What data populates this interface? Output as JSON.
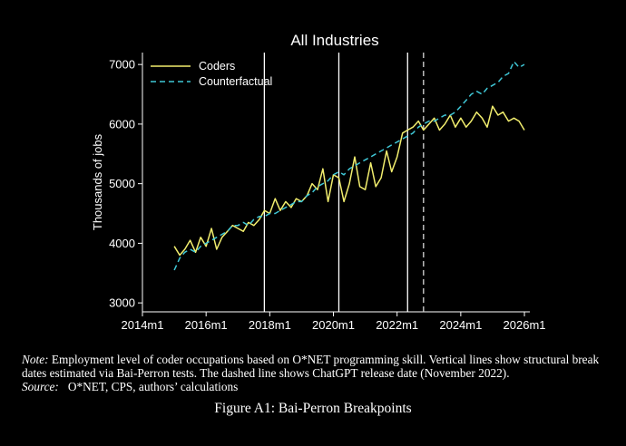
{
  "chart_data": {
    "type": "line",
    "title": "All Industries",
    "xlabel": "",
    "ylabel": "Thousands of jobs",
    "x_tick_labels": [
      "2014m1",
      "2016m1",
      "2018m1",
      "2020m1",
      "2022m1",
      "2024m1",
      "2026m1"
    ],
    "x_ticks": [
      2014.0,
      2016.0,
      2018.0,
      2020.0,
      2022.0,
      2024.0,
      2026.0
    ],
    "xlim": [
      2014.0,
      2026.17
    ],
    "y_ticks": [
      3000,
      4000,
      5000,
      6000,
      7000
    ],
    "y_tick_labels": [
      "3000",
      "4000",
      "5000",
      "6000",
      "7000"
    ],
    "ylim": [
      2850,
      7200
    ],
    "grid": false,
    "legend_position": "top-left",
    "series": [
      {
        "name": "Coders",
        "color": "#f2ee6e",
        "dash": "solid",
        "x": [
          2015.0,
          2015.17,
          2015.33,
          2015.5,
          2015.67,
          2015.83,
          2016.0,
          2016.17,
          2016.33,
          2016.5,
          2016.67,
          2016.83,
          2017.0,
          2017.17,
          2017.33,
          2017.5,
          2017.67,
          2017.83,
          2018.0,
          2018.17,
          2018.33,
          2018.5,
          2018.67,
          2018.83,
          2019.0,
          2019.17,
          2019.33,
          2019.5,
          2019.67,
          2019.83,
          2020.0,
          2020.17,
          2020.33,
          2020.5,
          2020.67,
          2020.83,
          2021.0,
          2021.17,
          2021.33,
          2021.5,
          2021.67,
          2021.83,
          2022.0,
          2022.17,
          2022.33,
          2022.5,
          2022.67,
          2022.83,
          2023.0,
          2023.17,
          2023.33,
          2023.5,
          2023.67,
          2023.83,
          2024.0,
          2024.17,
          2024.33,
          2024.5,
          2024.67,
          2024.83,
          2025.0,
          2025.17,
          2025.33,
          2025.5,
          2025.67,
          2025.83,
          2026.0
        ],
        "y": [
          3950,
          3800,
          3900,
          4050,
          3850,
          4100,
          3950,
          4250,
          3900,
          4100,
          4200,
          4300,
          4250,
          4200,
          4350,
          4300,
          4400,
          4550,
          4500,
          4750,
          4550,
          4700,
          4600,
          4750,
          4700,
          4800,
          5000,
          4900,
          5250,
          4700,
          5150,
          5100,
          4700,
          5000,
          5450,
          4950,
          4900,
          5350,
          4950,
          5100,
          5550,
          5200,
          5450,
          5850,
          5900,
          5950,
          6050,
          5900,
          6000,
          6100,
          5900,
          6000,
          6150,
          5950,
          6100,
          5950,
          6050,
          6200,
          6100,
          5950,
          6300,
          6150,
          6200,
          6050,
          6100,
          6050,
          5900
        ]
      },
      {
        "name": "Counterfactual",
        "color": "#3fc7d6",
        "dash": "dashed",
        "x": [
          2015.0,
          2015.17,
          2015.33,
          2015.5,
          2015.67,
          2015.83,
          2016.0,
          2016.17,
          2016.33,
          2016.5,
          2016.67,
          2016.83,
          2017.0,
          2017.17,
          2017.33,
          2017.5,
          2017.67,
          2017.83,
          2018.0,
          2018.17,
          2018.33,
          2018.5,
          2018.67,
          2018.83,
          2019.0,
          2019.17,
          2019.33,
          2019.5,
          2019.67,
          2019.83,
          2020.0,
          2020.17,
          2020.33,
          2020.5,
          2020.67,
          2020.83,
          2021.0,
          2021.17,
          2021.33,
          2021.5,
          2021.67,
          2021.83,
          2022.0,
          2022.17,
          2022.33,
          2022.5,
          2022.67,
          2022.83,
          2023.0,
          2023.17,
          2023.33,
          2023.5,
          2023.67,
          2023.83,
          2024.0,
          2024.17,
          2024.33,
          2024.5,
          2024.67,
          2024.83,
          2025.0,
          2025.17,
          2025.33,
          2025.5,
          2025.67,
          2025.83,
          2026.0
        ],
        "y": [
          3550,
          3750,
          3850,
          3900,
          3850,
          3950,
          4000,
          4050,
          4100,
          4150,
          4200,
          4300,
          4300,
          4350,
          4300,
          4400,
          4450,
          4450,
          4500,
          4500,
          4550,
          4600,
          4650,
          4700,
          4700,
          4800,
          4850,
          4950,
          5000,
          5050,
          5150,
          5200,
          5150,
          5250,
          5300,
          5350,
          5400,
          5450,
          5500,
          5550,
          5600,
          5650,
          5700,
          5750,
          5800,
          5850,
          5950,
          6000,
          6050,
          6050,
          6100,
          6150,
          6150,
          6200,
          6300,
          6400,
          6500,
          6550,
          6500,
          6600,
          6650,
          6700,
          6800,
          6850,
          7050,
          6950,
          7000
        ]
      }
    ],
    "vertical_lines": [
      {
        "x": 2017.83,
        "style": "solid"
      },
      {
        "x": 2020.17,
        "style": "solid"
      },
      {
        "x": 2022.33,
        "style": "solid"
      },
      {
        "x": 2022.83,
        "style": "dashed"
      }
    ]
  },
  "note": {
    "label": "Note:",
    "text": "Employment level of coder occupations based on O*NET programming skill. Vertical lines show structural break dates estimated via Bai-Perron tests. The dashed line shows ChatGPT release date (November 2022).",
    "source_label": "Source:",
    "source_text": "O*NET, CPS, authors’ calculations"
  },
  "figure_caption": "Figure A1: Bai-Perron Breakpoints"
}
